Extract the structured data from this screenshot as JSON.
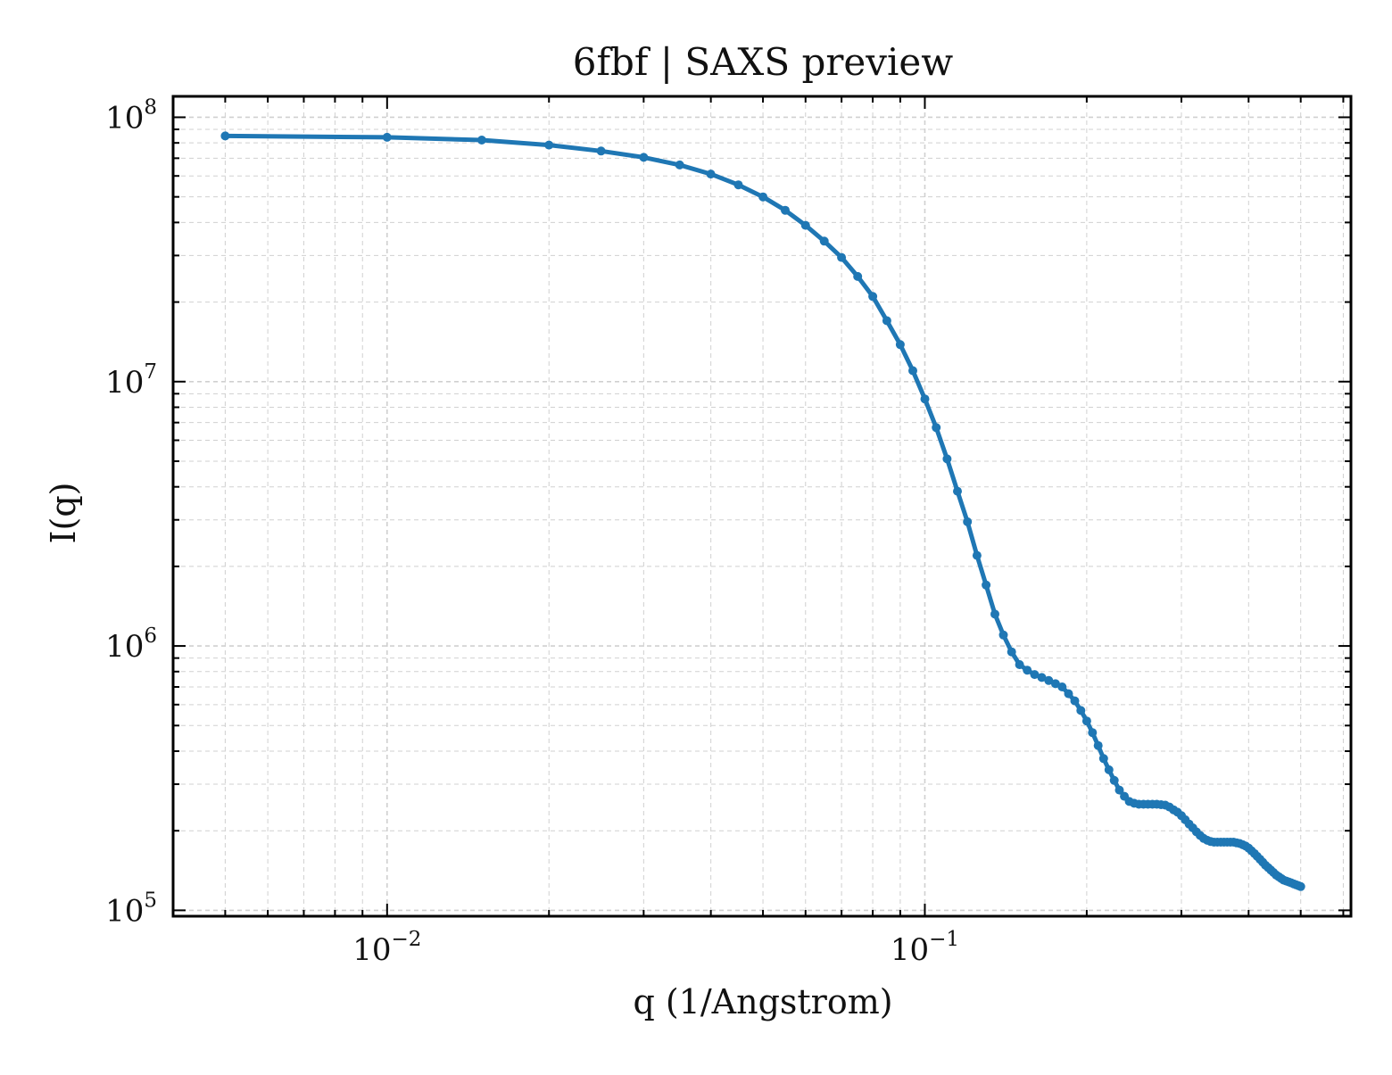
{
  "chart_data": {
    "type": "line",
    "title": "6fbf | SAXS preview",
    "xlabel": "q (1/Angstrom)",
    "ylabel": "I(q)",
    "xscale": "log",
    "yscale": "log",
    "xlim": [
      0.004,
      0.62
    ],
    "ylim": [
      95000,
      120000000
    ],
    "grid": true,
    "legend": "none",
    "colors": {
      "series": "#1f77b4",
      "axes": "#000000",
      "grid": "#d0d0d0"
    },
    "x_ticks": [
      {
        "base": "10",
        "exp": "−2",
        "value": 0.01
      },
      {
        "base": "10",
        "exp": "−1",
        "value": 0.1
      }
    ],
    "y_ticks": [
      {
        "base": "10",
        "exp": "5",
        "value": 100000
      },
      {
        "base": "10",
        "exp": "6",
        "value": 1000000
      },
      {
        "base": "10",
        "exp": "7",
        "value": 10000000
      },
      {
        "base": "10",
        "exp": "8",
        "value": 100000000
      }
    ],
    "series": [
      {
        "x": [
          0.005,
          0.01,
          0.015,
          0.02,
          0.025,
          0.03,
          0.035,
          0.04,
          0.045,
          0.05,
          0.055,
          0.06,
          0.065,
          0.07,
          0.075,
          0.08,
          0.085,
          0.09,
          0.095,
          0.1,
          0.105,
          0.11,
          0.115,
          0.12,
          0.125,
          0.13,
          0.135,
          0.14,
          0.145,
          0.15,
          0.155,
          0.16,
          0.165,
          0.17,
          0.175,
          0.18,
          0.185,
          0.19,
          0.195,
          0.2,
          0.205,
          0.21,
          0.215,
          0.22,
          0.225,
          0.23,
          0.235,
          0.24,
          0.245,
          0.25,
          0.255,
          0.26,
          0.265,
          0.27,
          0.275,
          0.28,
          0.285,
          0.29,
          0.295,
          0.3,
          0.305,
          0.31,
          0.315,
          0.32,
          0.325,
          0.33,
          0.335,
          0.34,
          0.345,
          0.35,
          0.355,
          0.36,
          0.365,
          0.37,
          0.375,
          0.38,
          0.385,
          0.39,
          0.395,
          0.4,
          0.405,
          0.41,
          0.415,
          0.42,
          0.425,
          0.43,
          0.435,
          0.44,
          0.445,
          0.45,
          0.455,
          0.46,
          0.465,
          0.47,
          0.475,
          0.48,
          0.485,
          0.49,
          0.495,
          0.5
        ],
        "y": [
          85000000,
          84000000,
          82000000,
          78500000,
          74500000,
          70500000,
          66000000,
          61000000,
          55500000,
          50000000,
          44500000,
          39000000,
          34000000,
          29500000,
          25000000,
          21000000,
          17000000,
          13800000,
          11000000,
          8600000,
          6700000,
          5100000,
          3850000,
          2950000,
          2200000,
          1700000,
          1320000,
          1100000,
          950000,
          850000,
          810000,
          780000,
          760000,
          740000,
          720000,
          700000,
          660000,
          620000,
          570000,
          520000,
          470000,
          420000,
          375000,
          340000,
          310000,
          285000,
          270000,
          258000,
          254000,
          252000,
          252000,
          252000,
          252000,
          252000,
          251000,
          250000,
          246000,
          240000,
          235000,
          228000,
          220000,
          212000,
          205000,
          198000,
          192000,
          187000,
          184000,
          182000,
          181000,
          181000,
          181000,
          181000,
          181000,
          181000,
          181000,
          180000,
          179000,
          177000,
          175000,
          172000,
          168000,
          164000,
          160000,
          156000,
          152000,
          148000,
          145000,
          142000,
          139000,
          136000,
          134000,
          132000,
          130000,
          129000,
          128000,
          127000,
          126000,
          125000,
          124000,
          123000
        ]
      }
    ]
  }
}
